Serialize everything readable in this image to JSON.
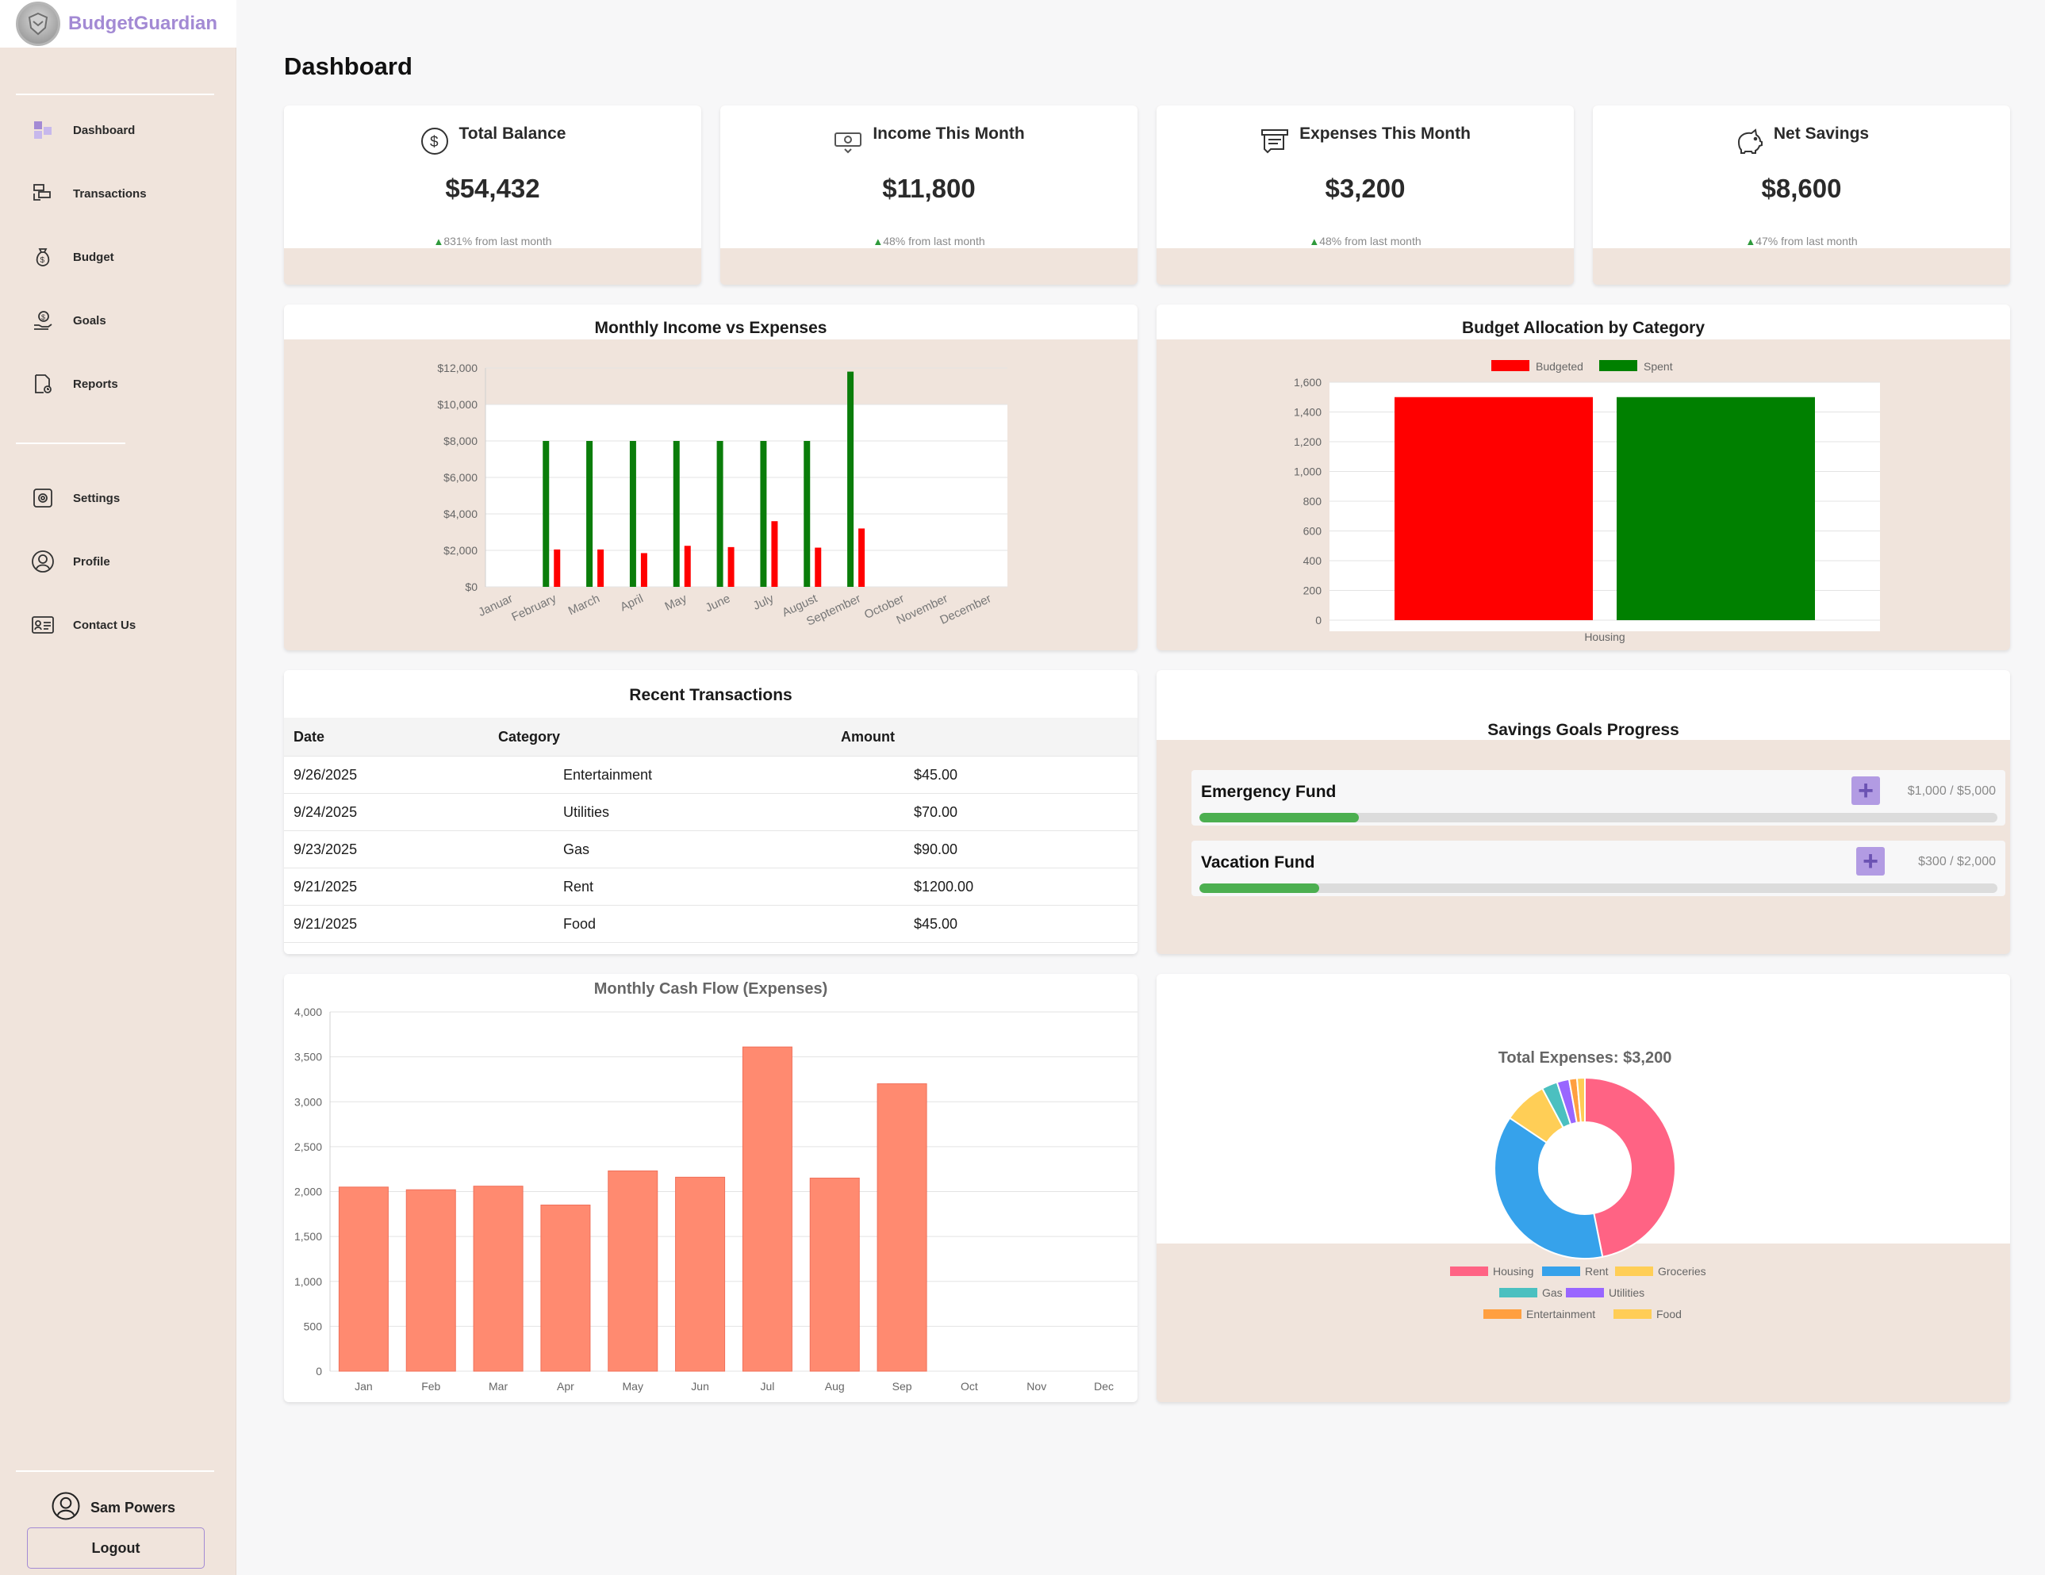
{
  "app": {
    "name": "BudgetGuardian"
  },
  "sidebar": {
    "items": [
      {
        "label": "Dashboard",
        "icon": "dashboard-icon"
      },
      {
        "label": "Transactions",
        "icon": "transactions-icon"
      },
      {
        "label": "Budget",
        "icon": "money-bag-icon"
      },
      {
        "label": "Goals",
        "icon": "goals-icon"
      },
      {
        "label": "Reports",
        "icon": "reports-icon"
      },
      {
        "label": "Settings",
        "icon": "gear-icon"
      },
      {
        "label": "Profile",
        "icon": "user-icon"
      },
      {
        "label": "Contact Us",
        "icon": "contact-card-icon"
      }
    ],
    "user_name": "Sam Powers",
    "logout_label": "Logout"
  },
  "page_title": "Dashboard",
  "stats": [
    {
      "title": "Total Balance",
      "value": "$54,432",
      "change": "831% from last month",
      "icon": "dollar-icon"
    },
    {
      "title": "Income This Month",
      "value": "$11,800",
      "change": "48% from last month",
      "icon": "cash-icon"
    },
    {
      "title": "Expenses This Month",
      "value": "$3,200",
      "change": "48% from last month",
      "icon": "receipt-icon"
    },
    {
      "title": "Net Savings",
      "value": "$8,600",
      "change": "47% from last month",
      "icon": "piggy-bank-icon"
    }
  ],
  "transactions": {
    "title": "Recent Transactions",
    "columns": [
      "Date",
      "Category",
      "Amount"
    ],
    "rows": [
      {
        "date": "9/26/2025",
        "category": "Entertainment",
        "amount": "$45.00"
      },
      {
        "date": "9/24/2025",
        "category": "Utilities",
        "amount": "$70.00"
      },
      {
        "date": "9/23/2025",
        "category": "Gas",
        "amount": "$90.00"
      },
      {
        "date": "9/21/2025",
        "category": "Rent",
        "amount": "$1200.00"
      },
      {
        "date": "9/21/2025",
        "category": "Food",
        "amount": "$45.00"
      }
    ]
  },
  "savings_goals": {
    "title": "Savings Goals Progress",
    "goals": [
      {
        "name": "Emergency Fund",
        "amount": "$1,000 / $5,000",
        "progress": 0.2
      },
      {
        "name": "Vacation Fund",
        "amount": "$300 / $2,000",
        "progress": 0.15
      }
    ]
  },
  "colors": {
    "income": "#0a7d0a",
    "expense": "#ff0000",
    "accent": "#a38ad4",
    "cashflow_bar": "#ff8a70",
    "progress": "#4caf50"
  },
  "chart_data": [
    {
      "id": "income_expenses",
      "type": "bar",
      "title": "Monthly Income vs Expenses",
      "categories": [
        "Januar",
        "February",
        "March",
        "April",
        "May",
        "June",
        "July",
        "August",
        "September",
        "October",
        "November",
        "December"
      ],
      "series": [
        {
          "color": "#0a7d0a",
          "values": [
            null,
            8000,
            8000,
            8000,
            8000,
            8000,
            8000,
            8000,
            11800,
            null,
            null,
            null
          ]
        },
        {
          "color": "#ff0000",
          "values": [
            null,
            2050,
            2050,
            1850,
            2250,
            2180,
            3600,
            2150,
            3200,
            null,
            null,
            null
          ]
        }
      ],
      "ylim": [
        0,
        12000
      ],
      "yticks": [
        "$0",
        "$2,000",
        "$4,000",
        "$6,000",
        "$8,000",
        "$10,000",
        "$12,000"
      ]
    },
    {
      "id": "budget_allocation",
      "type": "bar",
      "title": "Budget Allocation by Category",
      "categories": [
        "Housing"
      ],
      "series": [
        {
          "name": "Budgeted",
          "color": "#ff0000",
          "values": [
            1500
          ]
        },
        {
          "name": "Spent",
          "color": "#008000",
          "values": [
            1500
          ]
        }
      ],
      "ylim": [
        0,
        1600
      ],
      "yticks": [
        "0",
        "200",
        "400",
        "600",
        "800",
        "1,000",
        "1,200",
        "1,400",
        "1,600"
      ],
      "legend": "top"
    },
    {
      "id": "cash_flow",
      "type": "bar",
      "title": "Monthly Cash Flow (Expenses)",
      "categories": [
        "Jan",
        "Feb",
        "Mar",
        "Apr",
        "May",
        "Jun",
        "Jul",
        "Aug",
        "Sep",
        "Oct",
        "Nov",
        "Dec"
      ],
      "values": [
        2050,
        2020,
        2060,
        1850,
        2230,
        2160,
        3610,
        2150,
        3200,
        null,
        null,
        null
      ],
      "ylim": [
        0,
        4000
      ],
      "yticks": [
        "0",
        "500",
        "1,000",
        "1,500",
        "2,000",
        "2,500",
        "3,000",
        "3,500",
        "4,000"
      ]
    },
    {
      "id": "expenses_donut",
      "type": "pie",
      "title": "Total Expenses: $3,200",
      "labels": [
        "Housing",
        "Rent",
        "Groceries",
        "Gas",
        "Utilities",
        "Entertainment",
        "Food"
      ],
      "values": [
        1500,
        1200,
        250,
        90,
        70,
        45,
        45
      ],
      "colors": [
        "#ff6384",
        "#36a2eb",
        "#ffce56",
        "#4bc0c0",
        "#9966ff",
        "#ff9f40",
        "#ffcd56"
      ],
      "legend": "bottom"
    }
  ]
}
